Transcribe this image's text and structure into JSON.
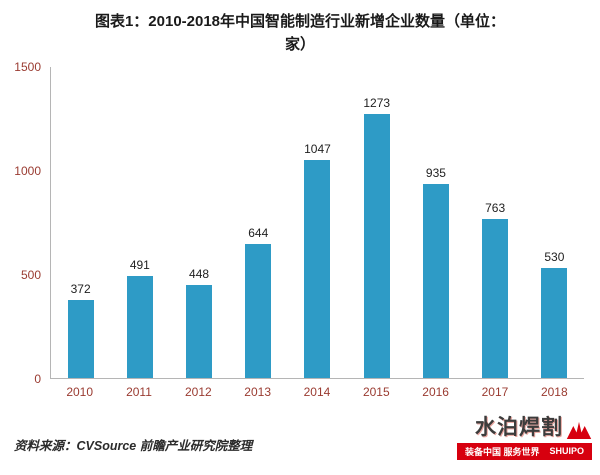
{
  "title": "图表1：2010-2018年中国智能制造行业新增企业数量（单位：家）",
  "source": "资料来源：CVSource 前瞻产业研究院整理",
  "chart_data": {
    "type": "bar",
    "title": "图表1：2010-2018年中国智能制造行业新增企业数量（单位：家）",
    "categories": [
      "2010",
      "2011",
      "2012",
      "2013",
      "2014",
      "2015",
      "2016",
      "2017",
      "2018"
    ],
    "values": [
      372,
      491,
      448,
      644,
      1047,
      1273,
      935,
      763,
      530
    ],
    "xlabel": "",
    "ylabel": "",
    "ylim": [
      0,
      1500
    ],
    "yticks": [
      0,
      500,
      1000,
      1500
    ],
    "grid": false,
    "legend_position": "none",
    "bar_color": "#2E9BC6",
    "axis_label_color": "#9A3B31"
  },
  "watermark": {
    "brand": "水泊焊割",
    "brand_latin": "SHUIPO",
    "tagline": "装备中国 服务世界",
    "brand_color": "#D7000F"
  }
}
